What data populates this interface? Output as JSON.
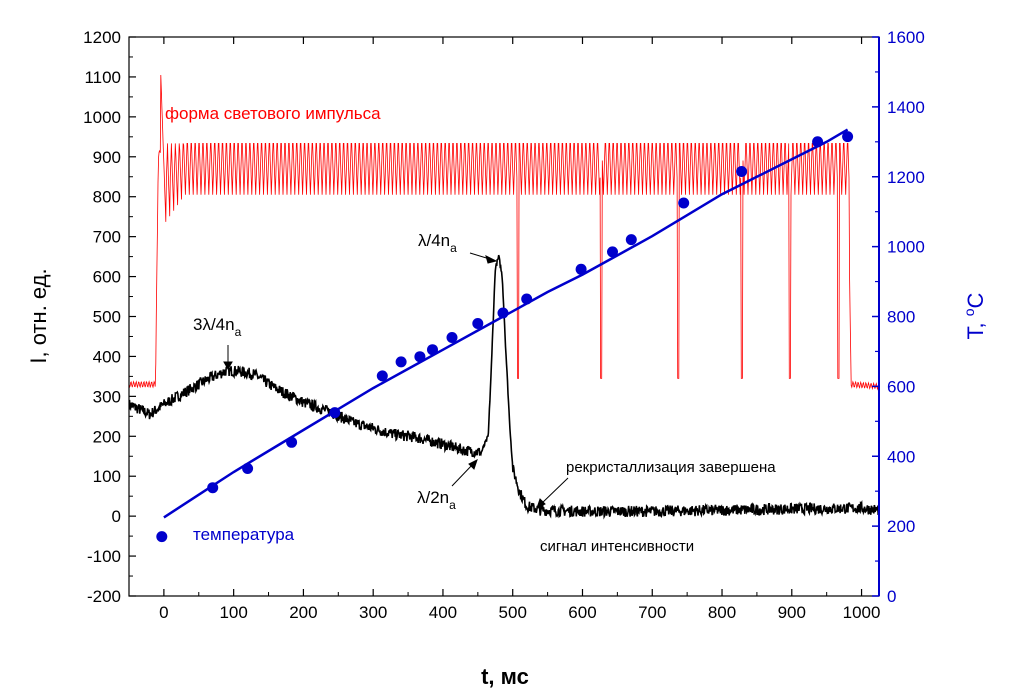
{
  "chart_data": {
    "type": "line",
    "xlabel": "t, мс",
    "ylabel_left": "I, отн. ед.",
    "ylabel_right": "T, °C",
    "ylabel_right_base": "T, ",
    "ylabel_right_deg": "o",
    "ylabel_right_unit": "C",
    "xlim": [
      -50,
      1025
    ],
    "ylim_left": [
      -200,
      1200
    ],
    "ylim_right": [
      0,
      1600
    ],
    "x_ticks": [
      0,
      100,
      200,
      300,
      400,
      500,
      600,
      700,
      800,
      900,
      1000
    ],
    "y_ticks_left": [
      -200,
      -100,
      0,
      100,
      200,
      300,
      400,
      500,
      600,
      700,
      800,
      900,
      1000,
      1100,
      1200
    ],
    "y_ticks_right": [
      0,
      200,
      400,
      600,
      800,
      1000,
      1200,
      1400,
      1600
    ],
    "grid": false,
    "colors": {
      "pulse": "#ff0000",
      "signal": "#000000",
      "temperature": "#0000cc",
      "axis_right": "#0000cc"
    },
    "annotations": {
      "pulse_label": "форма светового импульса",
      "temp_label": "температура",
      "signal_label": "сигнал интенсивности",
      "recryst_label": "рекристаллизация завершена",
      "peak_34_main": "3λ/4n",
      "peak_34_sub": "a",
      "peak_14_main": "λ/4n",
      "peak_14_sub": "a",
      "min_12_main": "λ/2n",
      "min_12_sub": "a"
    },
    "series": [
      {
        "name": "форма светового импульса",
        "axis": "left",
        "x": [
          -50,
          -12,
          -8,
          0,
          980,
          985,
          1025
        ],
        "y": [
          330,
          330,
          900,
          940,
          940,
          330,
          325
        ],
        "dips_x": [
          508,
          627,
          737,
          828,
          897,
          967
        ],
        "dips_y": [
          345,
          345,
          345,
          345,
          345,
          345
        ]
      },
      {
        "name": "сигнал интенсивности",
        "axis": "left",
        "x": [
          -50,
          -20,
          0,
          30,
          60,
          90,
          110,
          130,
          160,
          200,
          240,
          270,
          300,
          330,
          360,
          400,
          430,
          455,
          465,
          470,
          475,
          480,
          485,
          490,
          495,
          500,
          510,
          520,
          540,
          600,
          700,
          800,
          900,
          1000,
          1025
        ],
        "y": [
          280,
          255,
          280,
          310,
          340,
          365,
          362,
          355,
          320,
          285,
          260,
          235,
          220,
          205,
          198,
          180,
          165,
          160,
          200,
          400,
          620,
          650,
          600,
          420,
          250,
          120,
          60,
          25,
          15,
          12,
          12,
          15,
          18,
          20,
          15
        ]
      },
      {
        "name": "температура (расчёт)",
        "axis": "right",
        "x": [
          0,
          50,
          100,
          150,
          200,
          250,
          300,
          350,
          400,
          450,
          500,
          550,
          600,
          650,
          700,
          750,
          800,
          850,
          900,
          950,
          980
        ],
        "y": [
          225,
          290,
          355,
          415,
          475,
          535,
          595,
          650,
          705,
          760,
          815,
          870,
          920,
          975,
          1030,
          1090,
          1150,
          1200,
          1250,
          1300,
          1335
        ]
      },
      {
        "name": "температура (измерение)",
        "axis": "right",
        "type": "scatter",
        "x": [
          -3,
          70,
          120,
          183,
          245,
          313,
          340,
          367,
          385,
          413,
          450,
          486,
          520,
          598,
          643,
          670,
          745,
          828,
          937,
          980
        ],
        "y": [
          170,
          310,
          365,
          440,
          525,
          630,
          670,
          685,
          705,
          740,
          780,
          810,
          850,
          935,
          985,
          1020,
          1125,
          1215,
          1300,
          1315
        ]
      }
    ]
  }
}
